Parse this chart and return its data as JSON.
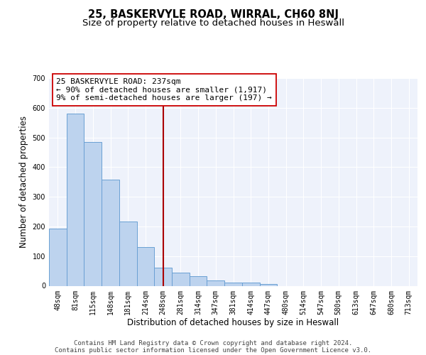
{
  "title": "25, BASKERVYLE ROAD, WIRRAL, CH60 8NJ",
  "subtitle": "Size of property relative to detached houses in Heswall",
  "xlabel": "Distribution of detached houses by size in Heswall",
  "ylabel": "Number of detached properties",
  "bin_labels": [
    "48sqm",
    "81sqm",
    "115sqm",
    "148sqm",
    "181sqm",
    "214sqm",
    "248sqm",
    "281sqm",
    "314sqm",
    "347sqm",
    "381sqm",
    "414sqm",
    "447sqm",
    "480sqm",
    "514sqm",
    "547sqm",
    "580sqm",
    "613sqm",
    "647sqm",
    "680sqm",
    "713sqm"
  ],
  "bar_heights": [
    193,
    580,
    485,
    358,
    217,
    130,
    62,
    45,
    33,
    18,
    10,
    10,
    7,
    0,
    0,
    0,
    0,
    0,
    0,
    0,
    0
  ],
  "bar_color": "#bdd3ee",
  "bar_edge_color": "#6aa0d4",
  "background_color": "#eef2fb",
  "grid_color": "#ffffff",
  "vline_index": 6,
  "vline_color": "#aa0000",
  "annotation_box_text": "25 BASKERVYLE ROAD: 237sqm\n← 90% of detached houses are smaller (1,917)\n9% of semi-detached houses are larger (197) →",
  "annotation_box_color": "#cc0000",
  "ylim": [
    0,
    700
  ],
  "yticks": [
    0,
    100,
    200,
    300,
    400,
    500,
    600,
    700
  ],
  "footer_line1": "Contains HM Land Registry data © Crown copyright and database right 2024.",
  "footer_line2": "Contains public sector information licensed under the Open Government Licence v3.0.",
  "title_fontsize": 10.5,
  "subtitle_fontsize": 9.5,
  "xlabel_fontsize": 8.5,
  "ylabel_fontsize": 8.5,
  "tick_fontsize": 7,
  "annotation_fontsize": 8,
  "footer_fontsize": 6.5
}
